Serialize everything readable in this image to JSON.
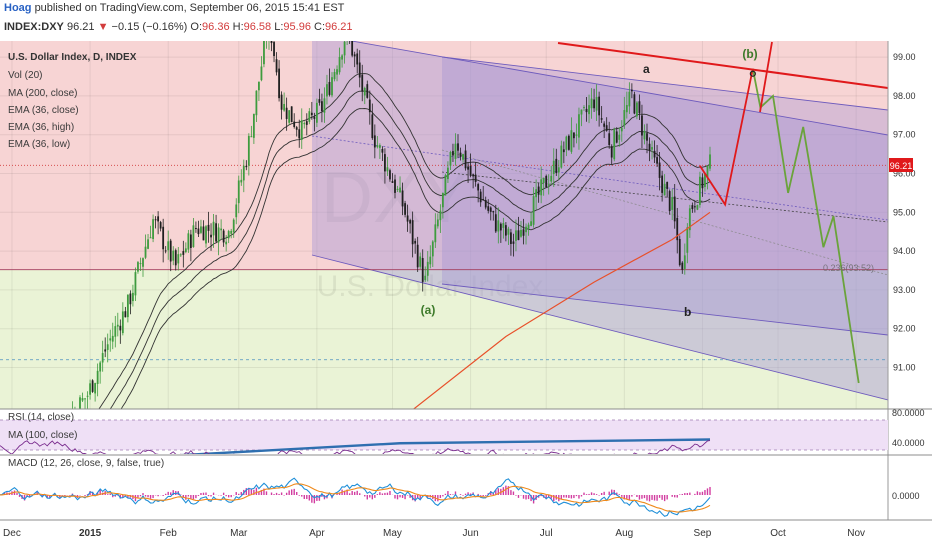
{
  "header": {
    "user": "Hoag",
    "published": "published on TradingView.com, September 06, 2015 15:41 EST",
    "symbol": "INDEX:DXY",
    "last": "96.21",
    "arrow": "▼",
    "change": "−0.15 (−0.16%)",
    "o_label": "O:",
    "o_value": "96.36",
    "h_label": "H:",
    "h_value": "96.58",
    "l_label": "L:",
    "l_value": "95.96",
    "c_label": "C:",
    "c_value": "96.21"
  },
  "main_legend": [
    "U.S. Dollar Index, D, INDEX",
    "Vol (20)",
    "MA (200, close)",
    "EMA (36, close)",
    "EMA (36, high)",
    "EMA (36, low)"
  ],
  "watermark": {
    "ticker": "DXY",
    "name": "U.S. Dollar Index"
  },
  "wave_labels": {
    "a": "a",
    "b_upper": "(b)",
    "a_paren": "(a)",
    "b": "b"
  },
  "price_badge": "96.21",
  "channel_label": "0.236(93.52)",
  "rsi_legend": [
    "RSI (14, close)",
    "MA (100, close)"
  ],
  "rsi_ticks": [
    "80.0000",
    "40.0000"
  ],
  "macd_legend": "MACD (12, 26, close, 9, false, true)",
  "macd_ticks": [
    "0.0000"
  ],
  "colors": {
    "red_zone": "#f7d4d4",
    "green_zone": "#eaf3d6",
    "channel": "#a99ad8",
    "projection_red": "#e0191b",
    "projection_green": "#6aa33b",
    "ma200": "#e8502a",
    "rsi_line": "#7a2c8e",
    "rsi_ma": "#2f6fb0",
    "macd_line": "#1f8fd8",
    "signal_line": "#ef8a1c",
    "hist": "#d23ca0"
  },
  "chart_data": {
    "type": "candlestick",
    "symbol": "INDEX:DXY",
    "timeframe": "D",
    "x_ticks": [
      "Dec",
      "2015",
      "Feb",
      "Mar",
      "Apr",
      "May",
      "Jun",
      "Jul",
      "Aug",
      "Sep",
      "Oct",
      "Nov"
    ],
    "y_ticks": [
      99.0,
      98.0,
      97.0,
      96.0,
      95.0,
      94.0,
      93.0,
      92.0,
      91.0
    ],
    "ylim": [
      90.2,
      99.5
    ],
    "last_close": 96.21,
    "horizontal_levels": [
      96.21,
      93.52,
      91.2
    ],
    "close_series": [
      {
        "date": "2014-11-26",
        "value": 87.9
      },
      {
        "date": "2014-12-10",
        "value": 88.6
      },
      {
        "date": "2014-12-31",
        "value": 90.3
      },
      {
        "date": "2015-01-08",
        "value": 91.6
      },
      {
        "date": "2015-01-16",
        "value": 92.6
      },
      {
        "date": "2015-01-26",
        "value": 94.8
      },
      {
        "date": "2015-02-04",
        "value": 93.6
      },
      {
        "date": "2015-02-12",
        "value": 94.6
      },
      {
        "date": "2015-02-25",
        "value": 94.5
      },
      {
        "date": "2015-03-04",
        "value": 96.4
      },
      {
        "date": "2015-03-13",
        "value": 100.0
      },
      {
        "date": "2015-03-18",
        "value": 97.8
      },
      {
        "date": "2015-03-26",
        "value": 97.1
      },
      {
        "date": "2015-04-03",
        "value": 97.7
      },
      {
        "date": "2015-04-13",
        "value": 99.7
      },
      {
        "date": "2015-04-24",
        "value": 96.9
      },
      {
        "date": "2015-05-05",
        "value": 95.2
      },
      {
        "date": "2015-05-14",
        "value": 93.2
      },
      {
        "date": "2015-05-26",
        "value": 96.9
      },
      {
        "date": "2015-06-02",
        "value": 95.8
      },
      {
        "date": "2015-06-10",
        "value": 94.8
      },
      {
        "date": "2015-06-18",
        "value": 94.2
      },
      {
        "date": "2015-07-01",
        "value": 95.8
      },
      {
        "date": "2015-07-08",
        "value": 96.6
      },
      {
        "date": "2015-07-20",
        "value": 97.9
      },
      {
        "date": "2015-07-27",
        "value": 96.7
      },
      {
        "date": "2015-08-04",
        "value": 98.0
      },
      {
        "date": "2015-08-12",
        "value": 96.4
      },
      {
        "date": "2015-08-20",
        "value": 95.1
      },
      {
        "date": "2015-08-24",
        "value": 93.4
      },
      {
        "date": "2015-08-26",
        "value": 94.9
      },
      {
        "date": "2015-09-04",
        "value": 96.21
      }
    ],
    "ma200_series": [
      {
        "date": "2015-05-01",
        "value": 89.5
      },
      {
        "date": "2015-06-15",
        "value": 91.8
      },
      {
        "date": "2015-07-20",
        "value": 93.2
      },
      {
        "date": "2015-08-20",
        "value": 94.3
      },
      {
        "date": "2015-09-04",
        "value": 95.0
      }
    ],
    "projections": [
      {
        "name": "",
        "color": "red",
        "points": [
          {
            "date": "2015-08-31",
            "value": 96.2
          },
          {
            "date": "2015-09-10",
            "value": 95.2
          },
          {
            "date": "2015-09-21",
            "value": 98.7
          }
        ]
      },
      {
        "name": "",
        "color": "green",
        "points": [
          {
            "date": "2015-09-21",
            "value": 98.7
          },
          {
            "date": "2015-09-24",
            "value": 97.7
          },
          {
            "date": "2015-09-29",
            "value": 98.0
          },
          {
            "date": "2015-10-05",
            "value": 95.5
          },
          {
            "date": "2015-10-11",
            "value": 97.2
          },
          {
            "date": "2015-10-19",
            "value": 94.1
          },
          {
            "date": "2015-10-23",
            "value": 94.9
          },
          {
            "date": "2015-11-02",
            "value": 90.6
          }
        ]
      }
    ],
    "rsi": {
      "ticks": [
        80,
        40
      ],
      "current": 52
    },
    "macd": {
      "ticks": [
        0
      ]
    }
  }
}
